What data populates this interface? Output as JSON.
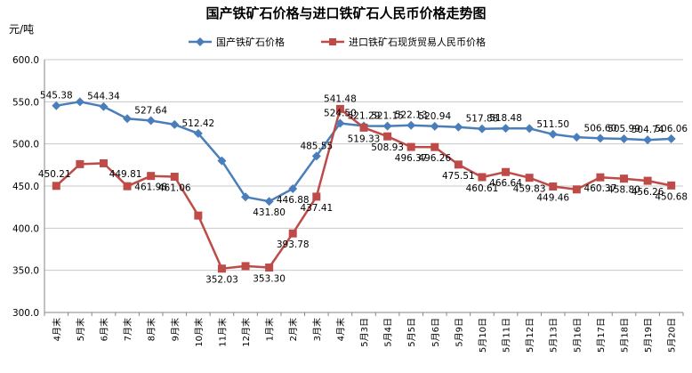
{
  "chart_data": {
    "type": "line",
    "title": "国产铁矿石价格与进口铁矿石人民币价格走势图",
    "ylabel": "元/吨",
    "ylim": [
      300,
      600
    ],
    "yticks": [
      "300.0",
      "350.0",
      "400.0",
      "450.0",
      "500.0",
      "550.0",
      "600.0"
    ],
    "grid": true,
    "legend_position": "top",
    "categories": [
      "4月末",
      "5月末",
      "6月末",
      "7月末",
      "8月末",
      "9月末",
      "10月末",
      "11月末",
      "12月末",
      "1月末",
      "2月末",
      "3月末",
      "4月末",
      "5月3日",
      "5月4日",
      "5月5日",
      "5月6日",
      "5月9日",
      "5月10日",
      "5月11日",
      "5月12日",
      "5月13日",
      "5月16日",
      "5月17日",
      "5月18日",
      "5月19日",
      "5月20日"
    ],
    "series": [
      {
        "name": "国产铁矿石价格",
        "color": "#4a7ebb",
        "marker": "diamond",
        "values": [
          545.38,
          550.0,
          544.34,
          530.0,
          527.64,
          523.0,
          512.42,
          480.0,
          437.0,
          431.8,
          446.88,
          485.55,
          524.5,
          521.29,
          521.15,
          522.13,
          520.94,
          520.0,
          517.88,
          518.48,
          518.3,
          511.5,
          508.0,
          506.6,
          505.99,
          504.74,
          506.06
        ],
        "labels": [
          "545.38",
          "",
          "544.34",
          "",
          "527.64",
          "",
          "512.42",
          "",
          "",
          "431.80",
          "446.88",
          "485.55",
          "524.50",
          "521.29",
          "521.15",
          "522.13",
          "520.94",
          "",
          "517.88",
          "518.48",
          "",
          "511.50",
          "",
          "506.60",
          "505.99",
          "504.74",
          "506.06"
        ]
      },
      {
        "name": "进口铁矿石现货贸易人民币价格",
        "color": "#be4b48",
        "marker": "square",
        "values": [
          450.21,
          476.0,
          477.0,
          449.81,
          461.98,
          461.06,
          415.0,
          352.03,
          355.0,
          353.3,
          393.78,
          437.41,
          541.48,
          519.33,
          508.93,
          496.37,
          496.26,
          475.51,
          460.61,
          466.64,
          459.83,
          449.46,
          446.0,
          460.37,
          458.8,
          456.26,
          450.68
        ],
        "labels": [
          "450.21",
          "",
          "",
          "449.81",
          "461.98",
          "461.06",
          "",
          "352.03",
          "",
          "353.30",
          "393.78",
          "437.41",
          "541.48",
          "519.33",
          "508.93",
          "496.37",
          "496.26",
          "475.51",
          "460.61",
          "466.64",
          "459.83",
          "449.46",
          "",
          "460.37",
          "458.80",
          "456.26",
          "450.68"
        ]
      }
    ]
  }
}
